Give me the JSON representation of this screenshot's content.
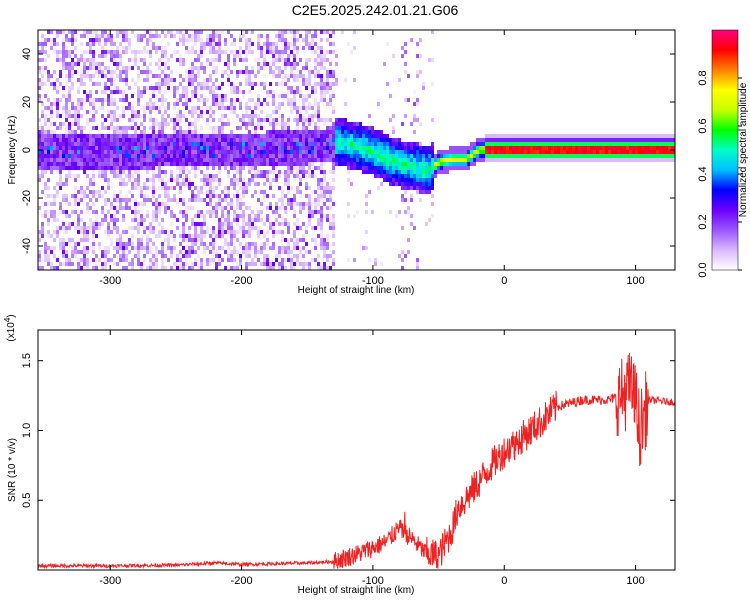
{
  "title": "C2E5.2025.242.01.21.G06",
  "chart_data": [
    {
      "type": "heatmap",
      "xlabel": "Height of straight line (km)",
      "ylabel": "Frequency (Hz)",
      "xlim": [
        -355,
        130
      ],
      "ylim": [
        -50,
        50
      ],
      "xticks": [
        -300,
        -200,
        -100,
        0,
        100
      ],
      "yticks": [
        -40,
        -20,
        0,
        20,
        40
      ],
      "colorbar": {
        "label": "Normalized spectral amplitude",
        "range": [
          0,
          1
        ],
        "ticks": [
          0.0,
          0.2,
          0.4,
          0.6,
          0.8
        ],
        "colormap": [
          "#ffffff",
          "#d9b8ff",
          "#9a55ff",
          "#6a00ff",
          "#0000ff",
          "#00bfff",
          "#00ffc8",
          "#00ff00",
          "#c8ff00",
          "#ffff00",
          "#ff8000",
          "#ff0000",
          "#ff0080"
        ]
      },
      "ridge": [
        {
          "x": -355,
          "y": 0
        },
        {
          "x": -300,
          "y": 0
        },
        {
          "x": -200,
          "y": 1
        },
        {
          "x": -150,
          "y": 2
        },
        {
          "x": -125,
          "y": 4
        },
        {
          "x": -110,
          "y": 2
        },
        {
          "x": -100,
          "y": 0
        },
        {
          "x": -90,
          "y": -3
        },
        {
          "x": -80,
          "y": -5
        },
        {
          "x": -70,
          "y": -6
        },
        {
          "x": -60,
          "y": -8
        },
        {
          "x": -50,
          "y": -4
        },
        {
          "x": -40,
          "y": -3
        },
        {
          "x": -30,
          "y": -3
        },
        {
          "x": -20,
          "y": 1
        },
        {
          "x": 0,
          "y": 1
        },
        {
          "x": 50,
          "y": 1
        },
        {
          "x": 100,
          "y": 1
        },
        {
          "x": 130,
          "y": 1
        }
      ]
    },
    {
      "type": "line",
      "xlabel": "Height of straight line (km)",
      "ylabel": "SNR (10 * v/v)",
      "yscale_label": "(x10^4)",
      "xlim": [
        -355,
        130
      ],
      "ylim": [
        0,
        1.72
      ],
      "xticks": [
        -300,
        -200,
        -100,
        0,
        100
      ],
      "yticks": [
        0.5,
        1.0,
        1.5
      ],
      "color": "#ee2222",
      "series": [
        {
          "values": [
            {
              "x": -355,
              "y": 0.03
            },
            {
              "x": -300,
              "y": 0.03
            },
            {
              "x": -250,
              "y": 0.035
            },
            {
              "x": -220,
              "y": 0.05
            },
            {
              "x": -200,
              "y": 0.04
            },
            {
              "x": -150,
              "y": 0.05
            },
            {
              "x": -130,
              "y": 0.06
            },
            {
              "x": -110,
              "y": 0.12
            },
            {
              "x": -100,
              "y": 0.16
            },
            {
              "x": -90,
              "y": 0.2
            },
            {
              "x": -80,
              "y": 0.3
            },
            {
              "x": -70,
              "y": 0.22
            },
            {
              "x": -60,
              "y": 0.12
            },
            {
              "x": -50,
              "y": 0.1
            },
            {
              "x": -40,
              "y": 0.28
            },
            {
              "x": -35,
              "y": 0.45
            },
            {
              "x": -30,
              "y": 0.5
            },
            {
              "x": -20,
              "y": 0.62
            },
            {
              "x": -10,
              "y": 0.75
            },
            {
              "x": 0,
              "y": 0.85
            },
            {
              "x": 10,
              "y": 0.92
            },
            {
              "x": 20,
              "y": 1.0
            },
            {
              "x": 30,
              "y": 1.08
            },
            {
              "x": 40,
              "y": 1.17
            },
            {
              "x": 60,
              "y": 1.22
            },
            {
              "x": 80,
              "y": 1.22
            },
            {
              "x": 90,
              "y": 1.25
            },
            {
              "x": 95,
              "y": 1.3
            },
            {
              "x": 100,
              "y": 1.22
            },
            {
              "x": 103,
              "y": 1.0
            },
            {
              "x": 110,
              "y": 1.22
            },
            {
              "x": 130,
              "y": 1.2
            }
          ]
        }
      ]
    }
  ]
}
